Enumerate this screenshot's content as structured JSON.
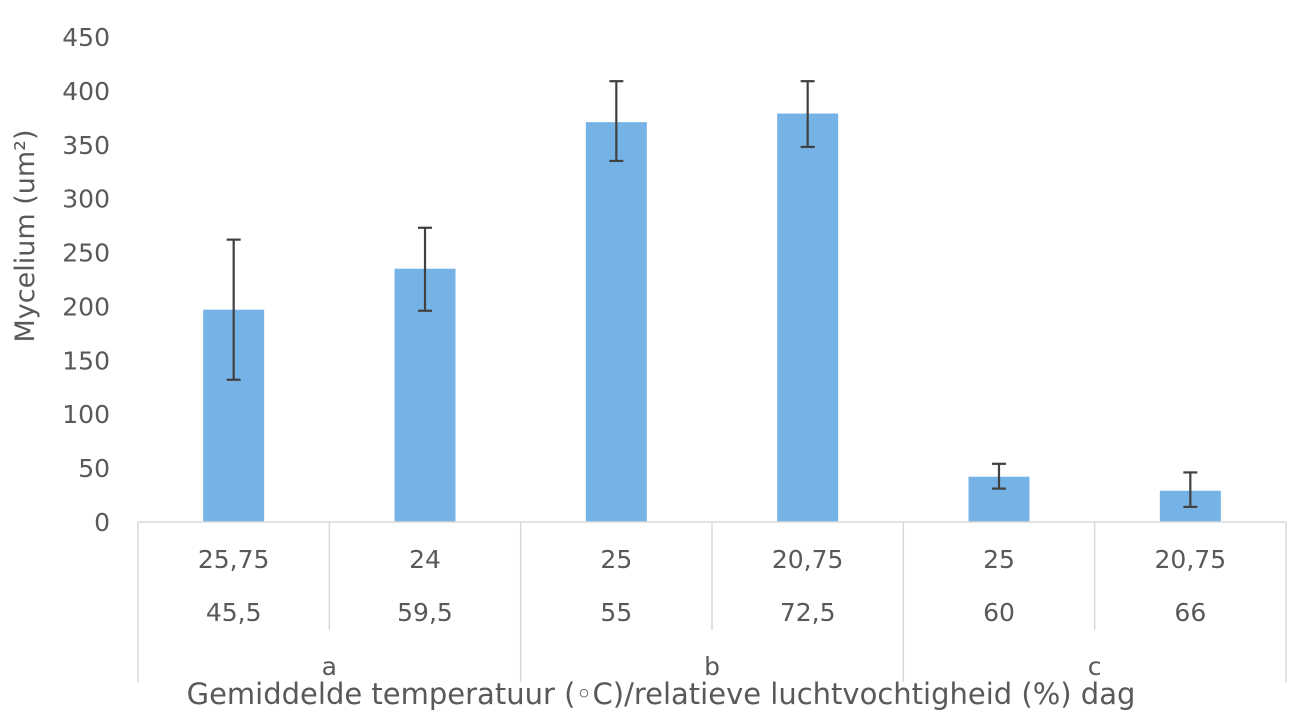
{
  "chart_data": {
    "type": "bar",
    "title": "",
    "ylabel": "Mycelium (um²)",
    "xlabel": "Gemiddelde temperatuur (◦C)/relatieve luchtvochtigheid (%) dag",
    "ylim": [
      0,
      450
    ],
    "yticks": [
      0,
      50,
      100,
      150,
      200,
      250,
      300,
      350,
      400,
      450
    ],
    "grid": false,
    "legend": "none",
    "bar_color": "#75b3e6",
    "errorbar_color": "#404040",
    "categories": [
      {
        "temperature": "25,75",
        "humidity": "45,5",
        "group": "a"
      },
      {
        "temperature": "24",
        "humidity": "59,5",
        "group": "a"
      },
      {
        "temperature": "25",
        "humidity": "55",
        "group": "b"
      },
      {
        "temperature": "20,75",
        "humidity": "72,5",
        "group": "b"
      },
      {
        "temperature": "25",
        "humidity": "60",
        "group": "c"
      },
      {
        "temperature": "20,75",
        "humidity": "66",
        "group": "c"
      }
    ],
    "groups": [
      "a",
      "b",
      "c"
    ],
    "values": [
      197,
      235,
      371,
      379,
      42,
      29
    ],
    "error": [
      [
        132,
        262
      ],
      [
        196,
        273
      ],
      [
        335,
        409
      ],
      [
        348,
        409
      ],
      [
        31,
        54
      ],
      [
        14,
        46
      ]
    ]
  }
}
